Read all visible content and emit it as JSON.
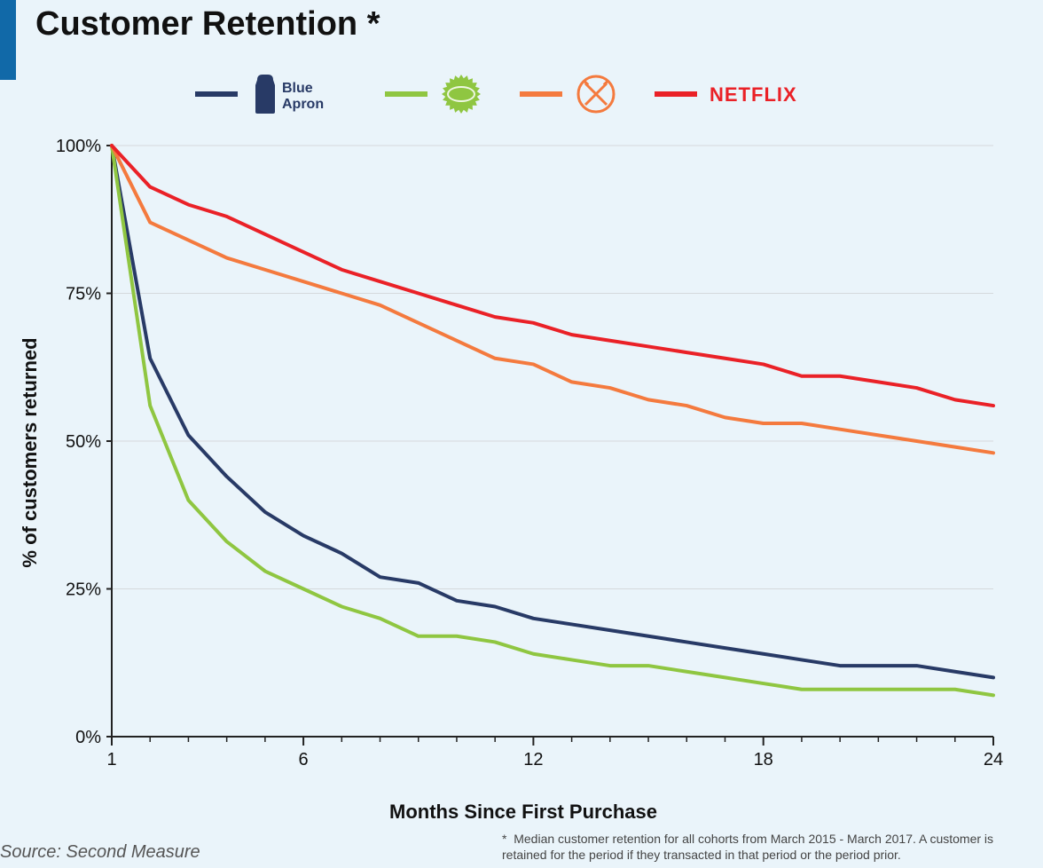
{
  "title": "Customer Retention *",
  "source_label": "Source: Second Measure",
  "footnote_marker": "*",
  "footnote": "Median customer retention for all cohorts from March 2015 - March 2017. A customer is retained for the period if they transacted in that period or the period prior.",
  "chart": {
    "type": "line",
    "background_color": "#eaf4fa",
    "accent_bar_color": "#1169a8",
    "grid_color": "#d5d9dc",
    "axis_color": "#222222",
    "line_width": 4,
    "title_fontsize": 38,
    "label_fontsize": 22,
    "tick_fontsize": 20,
    "x_label": "Months Since First Purchase",
    "y_label": "% of customers returned",
    "x_min": 1,
    "x_max": 24,
    "y_min": 0,
    "y_max": 100,
    "y_ticks": [
      0,
      25,
      50,
      75,
      100
    ],
    "y_tick_labels": [
      "0%",
      "25%",
      "50%",
      "75%",
      "100%"
    ],
    "x_ticks": [
      1,
      6,
      12,
      18,
      24
    ],
    "x_tick_labels": [
      "1",
      "6",
      "12",
      "18",
      "24"
    ],
    "x_minor_ticks": [
      2,
      3,
      4,
      5,
      7,
      8,
      9,
      10,
      11,
      13,
      14,
      15,
      16,
      17,
      19,
      20,
      21,
      22,
      23
    ],
    "x_values": [
      1,
      2,
      3,
      4,
      5,
      6,
      7,
      8,
      9,
      10,
      11,
      12,
      13,
      14,
      15,
      16,
      17,
      18,
      19,
      20,
      21,
      22,
      23,
      24
    ],
    "series": [
      {
        "name": "Blue Apron",
        "color": "#283a66",
        "logo_type": "apron",
        "logo_text1": "Blue",
        "logo_text2": "Apron",
        "values": [
          100,
          64,
          51,
          44,
          38,
          34,
          31,
          27,
          26,
          23,
          22,
          20,
          19,
          18,
          17,
          16,
          15,
          14,
          13,
          12,
          12,
          12,
          11,
          10
        ]
      },
      {
        "name": "HelloFresh",
        "color": "#8fc641",
        "logo_type": "badge",
        "values": [
          100,
          56,
          40,
          33,
          28,
          25,
          22,
          20,
          17,
          17,
          16,
          14,
          13,
          12,
          12,
          11,
          10,
          9,
          8,
          8,
          8,
          8,
          8,
          7
        ]
      },
      {
        "name": "Dollar Shave Club",
        "color": "#f47a3e",
        "logo_type": "dsc",
        "values": [
          100,
          87,
          84,
          81,
          79,
          77,
          75,
          73,
          70,
          67,
          64,
          63,
          60,
          59,
          57,
          56,
          54,
          53,
          53,
          52,
          51,
          50,
          49,
          48
        ]
      },
      {
        "name": "Netflix",
        "color": "#ea2127",
        "logo_type": "netflix",
        "logo_text1": "NETFLIX",
        "values": [
          100,
          93,
          90,
          88,
          85,
          82,
          79,
          77,
          75,
          73,
          71,
          70,
          68,
          67,
          66,
          65,
          64,
          63,
          61,
          61,
          60,
          59,
          57,
          56
        ]
      }
    ]
  }
}
